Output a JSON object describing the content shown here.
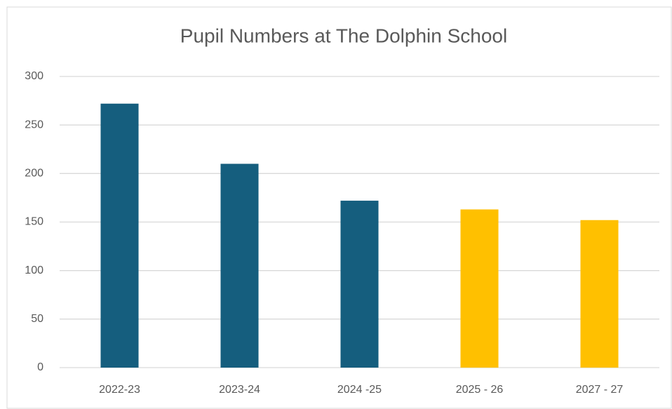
{
  "chart_data": {
    "type": "bar",
    "title": "Pupil Numbers at The Dolphin School",
    "categories": [
      "2022-23",
      "2023-24",
      "2024 -25",
      "2025 - 26",
      "2027 - 27"
    ],
    "values": [
      272,
      210,
      172,
      163,
      152
    ],
    "colors": [
      "#155e7e",
      "#155e7e",
      "#155e7e",
      "#ffc000",
      "#ffc000"
    ],
    "ylim": [
      0,
      300
    ],
    "yticks": [
      0,
      50,
      100,
      150,
      200,
      250,
      300
    ],
    "grid": true
  }
}
